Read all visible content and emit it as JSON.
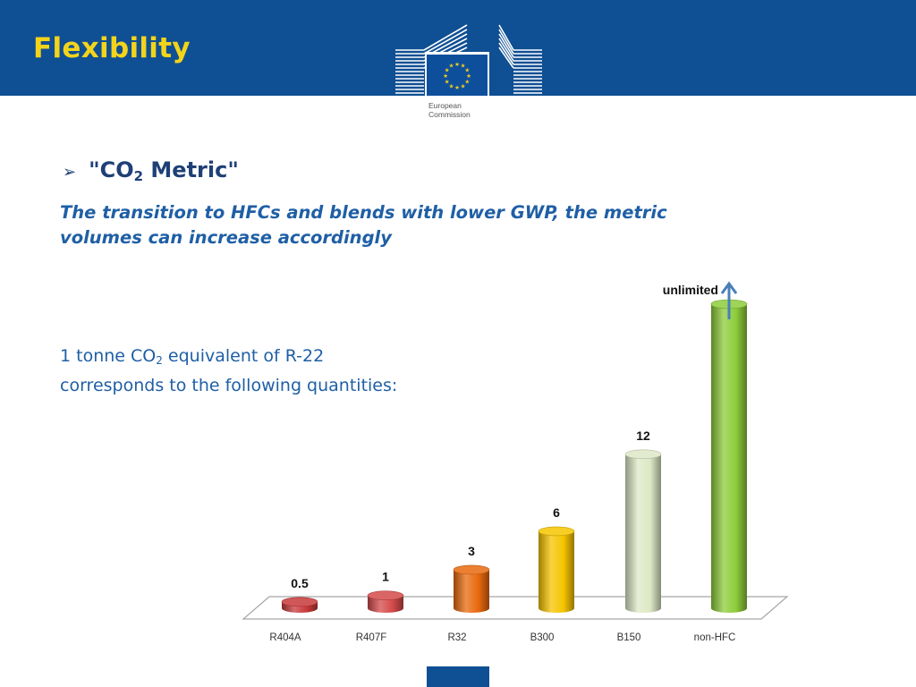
{
  "header": {
    "title": "Flexibility",
    "logo_line1": "European",
    "logo_line2": "Commission"
  },
  "bullet": {
    "prefix": "\"CO",
    "sub": "2",
    "suffix": " Metric\""
  },
  "subtitle": {
    "line1": "The transition to HFCs and blends with lower GWP, the metric",
    "line2": "volumes can increase accordingly"
  },
  "body": {
    "prefix": "1 tonne CO",
    "sub": "2",
    "suffix": " equivalent of R-22",
    "line2": "corresponds to the following quantities:"
  },
  "colors": {
    "header_bg": "#0f4f93",
    "title": "#f3d41b",
    "text": "#1f5fa5"
  },
  "chart_data": {
    "type": "bar",
    "categories": [
      "R404A",
      "R407F",
      "R32",
      "B300",
      "B150",
      "non-HFC"
    ],
    "values": [
      0.5,
      1,
      3,
      6,
      12,
      null
    ],
    "value_labels": [
      "0.5",
      "1",
      "3",
      "6",
      "12",
      "unlimited"
    ],
    "bar_colors": [
      "#c8393b",
      "#d44a4a",
      "#e8690e",
      "#f5c400",
      "#dde8c6",
      "#8dcc3a"
    ],
    "annotation_arrow_color": "#4a7fb8"
  }
}
